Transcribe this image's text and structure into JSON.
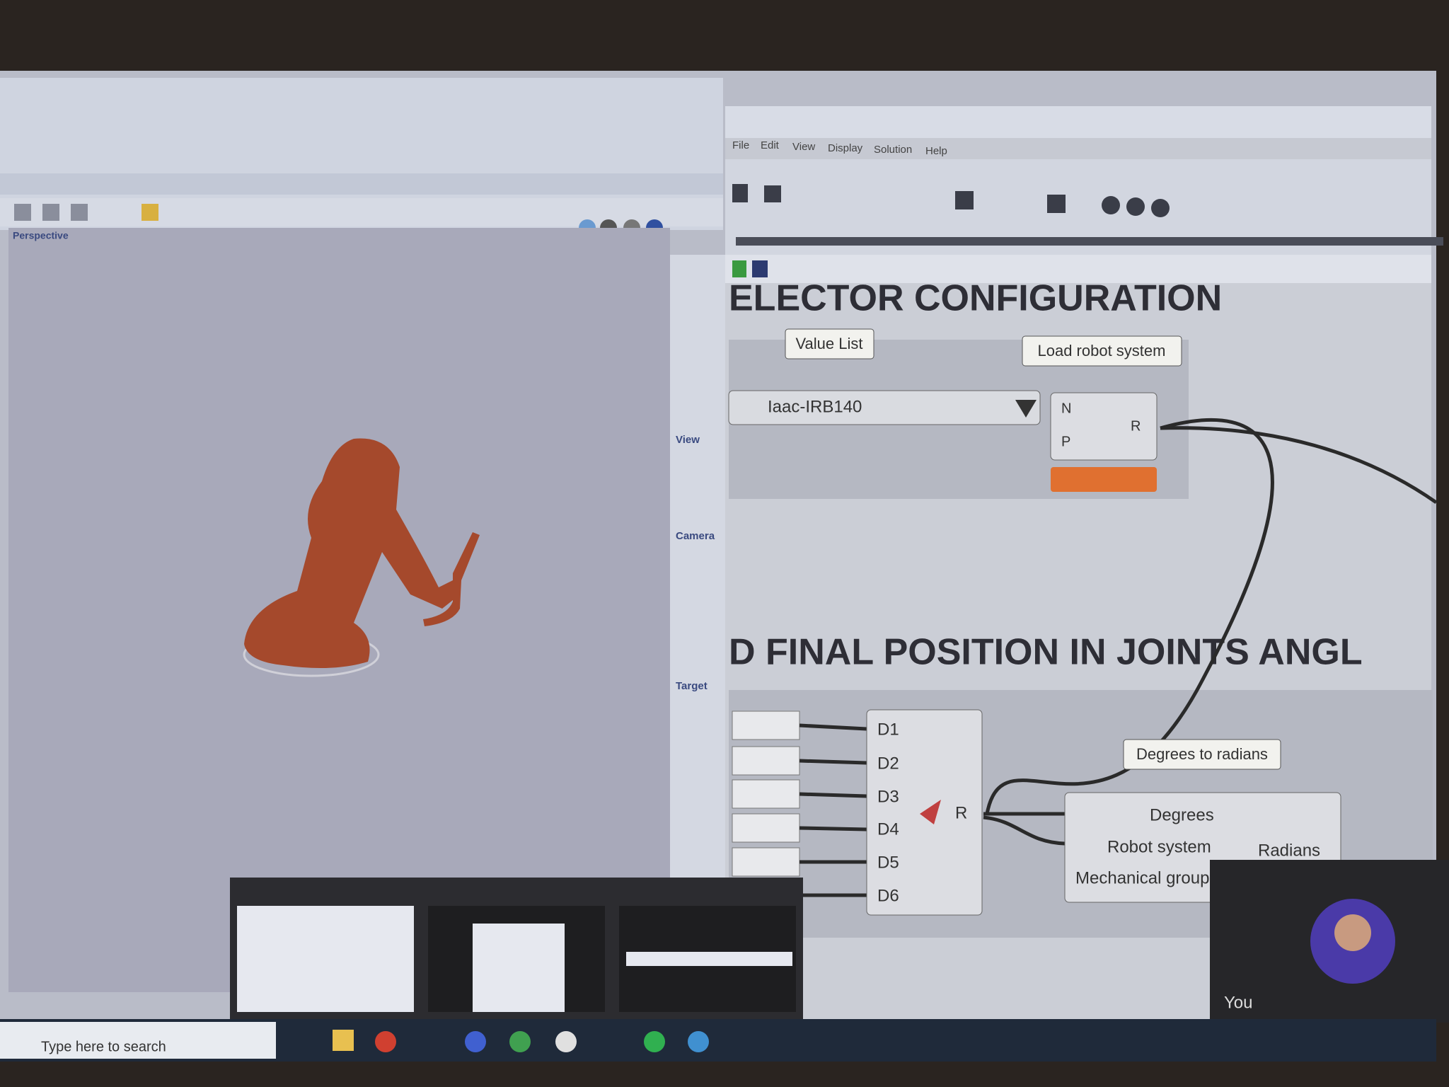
{
  "rhino": {
    "viewport_label": "Perspective",
    "panel_sections": [
      "View",
      "Camera",
      "Target"
    ]
  },
  "grasshopper": {
    "menu": [
      "File",
      "Edit",
      "View",
      "Display",
      "Solution",
      "Help"
    ],
    "group_titles": [
      "ELECTOR CONFIGURATION",
      "D FINAL POSITION IN JOINTS ANGL"
    ],
    "value_list": {
      "label": "Value List",
      "value": "Iaac-IRB140"
    },
    "load_robot": {
      "label": "Load robot system",
      "inputs": [
        "N",
        "P"
      ],
      "output": "R"
    },
    "create_target": {
      "inputs": [
        "D1",
        "D2",
        "D3",
        "D4",
        "D5",
        "D6"
      ],
      "output": "R"
    },
    "deg_to_rad": {
      "label": "Degrees to radians",
      "inputs": [
        "Degrees",
        "Robot system",
        "Mechanical group"
      ],
      "output": "Radians"
    }
  },
  "video_call": {
    "name": "You"
  },
  "taskbar": {
    "search": "Type here to search"
  }
}
